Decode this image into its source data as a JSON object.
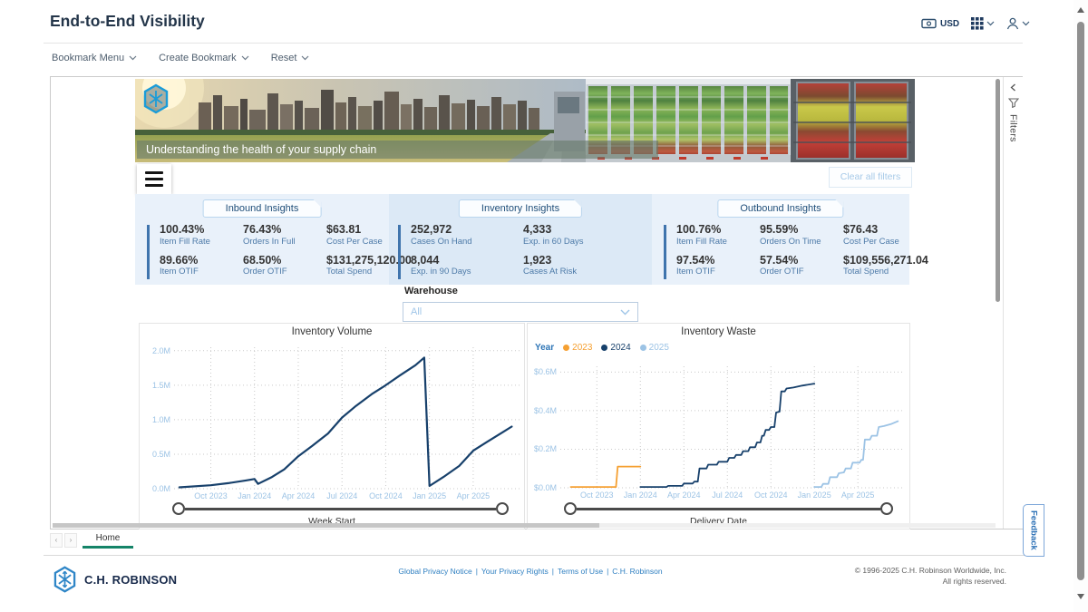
{
  "header": {
    "title": "End-to-End Visibility",
    "currency_label": "USD"
  },
  "toolbar": {
    "items": [
      "Bookmark Menu",
      "Create Bookmark",
      "Reset"
    ]
  },
  "banner": {
    "caption": "Understanding the health of your supply chain"
  },
  "actions": {
    "clear_all_filters": "Clear all filters"
  },
  "filters_pane": {
    "label": "Filters"
  },
  "insights": {
    "inbound": {
      "title": "Inbound Insights",
      "kpis": [
        {
          "value": "100.43%",
          "label": "Item Fill Rate"
        },
        {
          "value": "76.43%",
          "label": "Orders In Full"
        },
        {
          "value": "$63.81",
          "label": "Cost Per Case"
        },
        {
          "value": "89.66%",
          "label": "Item OTIF"
        },
        {
          "value": "68.50%",
          "label": "Order OTIF"
        },
        {
          "value": "$131,275,120.00",
          "label": "Total Spend"
        }
      ]
    },
    "inventory": {
      "title": "Inventory Insights",
      "kpis": [
        {
          "value": "252,972",
          "label": "Cases On Hand"
        },
        {
          "value": "4,333",
          "label": "Exp. in 60 Days"
        },
        {
          "value": "8,044",
          "label": "Exp. in 90 Days"
        },
        {
          "value": "1,923",
          "label": "Cases At Risk"
        }
      ]
    },
    "outbound": {
      "title": "Outbound Insights",
      "kpis": [
        {
          "value": "100.76%",
          "label": "Item Fill Rate"
        },
        {
          "value": "95.59%",
          "label": "Orders On Time"
        },
        {
          "value": "$76.43",
          "label": "Cost Per Case"
        },
        {
          "value": "97.54%",
          "label": "Item OTIF"
        },
        {
          "value": "57.54%",
          "label": "Order OTIF"
        },
        {
          "value": "$109,556,271.04",
          "label": "Total Spend"
        }
      ]
    }
  },
  "warehouse": {
    "label": "Warehouse",
    "value": "All"
  },
  "chart_data": [
    {
      "type": "line",
      "title": "Inventory Volume",
      "xlabel": "Week Start",
      "ylabel": "",
      "grid": true,
      "range_slider": true,
      "xlim": [
        2023.54,
        2025.52
      ],
      "ylim": [
        0,
        2.05
      ],
      "x_ticks": [
        {
          "label": "Oct 2023",
          "v": 2023.75
        },
        {
          "label": "Jan 2024",
          "v": 2024.0
        },
        {
          "label": "Apr 2024",
          "v": 2024.25
        },
        {
          "label": "Jul 2024",
          "v": 2024.5
        },
        {
          "label": "Oct 2024",
          "v": 2024.75
        },
        {
          "label": "Jan 2025",
          "v": 2025.0
        },
        {
          "label": "Apr 2025",
          "v": 2025.25
        }
      ],
      "y_ticks": [
        {
          "label": "2.0M",
          "v": 2.0
        },
        {
          "label": "1.5M",
          "v": 1.5
        },
        {
          "label": "1.0M",
          "v": 1.0
        },
        {
          "label": "0.5M",
          "v": 0.5
        },
        {
          "label": "0.0M",
          "v": 0.0
        }
      ],
      "series": [
        {
          "name": "Inventory Volume",
          "color": "#17406b",
          "width": 2.2,
          "points": [
            [
              2023.57,
              0.02
            ],
            [
              2023.75,
              0.05
            ],
            [
              2023.85,
              0.08
            ],
            [
              2023.95,
              0.12
            ],
            [
              2024.0,
              0.14
            ],
            [
              2024.02,
              0.07
            ],
            [
              2024.1,
              0.17
            ],
            [
              2024.17,
              0.28
            ],
            [
              2024.25,
              0.47
            ],
            [
              2024.33,
              0.62
            ],
            [
              2024.42,
              0.8
            ],
            [
              2024.5,
              1.03
            ],
            [
              2024.58,
              1.2
            ],
            [
              2024.67,
              1.37
            ],
            [
              2024.75,
              1.5
            ],
            [
              2024.83,
              1.64
            ],
            [
              2024.92,
              1.79
            ],
            [
              2024.97,
              1.9
            ],
            [
              2025.0,
              0.04
            ],
            [
              2025.08,
              0.17
            ],
            [
              2025.17,
              0.33
            ],
            [
              2025.25,
              0.55
            ],
            [
              2025.33,
              0.68
            ],
            [
              2025.42,
              0.82
            ],
            [
              2025.47,
              0.9
            ]
          ]
        }
      ]
    },
    {
      "type": "line",
      "title": "Inventory Waste",
      "xlabel": "Delivery Date",
      "ylabel": "",
      "legend_title": "Year",
      "legend_position": "top-left",
      "grid": true,
      "range_slider": true,
      "xlim": [
        2023.54,
        2025.52
      ],
      "ylim": [
        0,
        0.63
      ],
      "x_ticks": [
        {
          "label": "Oct 2023",
          "v": 2023.75
        },
        {
          "label": "Jan 2024",
          "v": 2024.0
        },
        {
          "label": "Apr 2024",
          "v": 2024.25
        },
        {
          "label": "Jul 2024",
          "v": 2024.5
        },
        {
          "label": "Oct 2024",
          "v": 2024.75
        },
        {
          "label": "Jan 2025",
          "v": 2025.0
        },
        {
          "label": "Apr 2025",
          "v": 2025.25
        }
      ],
      "y_ticks": [
        {
          "label": "$0.6M",
          "v": 0.6
        },
        {
          "label": "$0.4M",
          "v": 0.4
        },
        {
          "label": "$0.2M",
          "v": 0.2
        },
        {
          "label": "$0.0M",
          "v": 0.0
        }
      ],
      "series": [
        {
          "name": "2023",
          "color": "#f5a032",
          "width": 1.8,
          "points": [
            [
              2023.6,
              0.004
            ],
            [
              2023.86,
              0.004
            ],
            [
              2023.87,
              0.11
            ],
            [
              2024.0,
              0.11
            ]
          ]
        },
        {
          "name": "2024",
          "color": "#17406b",
          "width": 1.8,
          "points": [
            [
              2024.0,
              0.004
            ],
            [
              2024.15,
              0.004
            ],
            [
              2024.16,
              0.01
            ],
            [
              2024.24,
              0.01
            ],
            [
              2024.25,
              0.022
            ],
            [
              2024.3,
              0.022
            ],
            [
              2024.31,
              0.032
            ],
            [
              2024.33,
              0.032
            ],
            [
              2024.34,
              0.1
            ],
            [
              2024.38,
              0.1
            ],
            [
              2024.39,
              0.12
            ],
            [
              2024.44,
              0.12
            ],
            [
              2024.45,
              0.135
            ],
            [
              2024.5,
              0.135
            ],
            [
              2024.51,
              0.155
            ],
            [
              2024.54,
              0.155
            ],
            [
              2024.55,
              0.17
            ],
            [
              2024.58,
              0.17
            ],
            [
              2024.59,
              0.19
            ],
            [
              2024.62,
              0.19
            ],
            [
              2024.63,
              0.21
            ],
            [
              2024.66,
              0.21
            ],
            [
              2024.67,
              0.235
            ],
            [
              2024.69,
              0.235
            ],
            [
              2024.7,
              0.27
            ],
            [
              2024.71,
              0.27
            ],
            [
              2024.72,
              0.3
            ],
            [
              2024.74,
              0.3
            ],
            [
              2024.75,
              0.315
            ],
            [
              2024.77,
              0.315
            ],
            [
              2024.78,
              0.39
            ],
            [
              2024.8,
              0.395
            ],
            [
              2024.81,
              0.5
            ],
            [
              2024.83,
              0.5
            ],
            [
              2024.84,
              0.515
            ],
            [
              2024.88,
              0.52
            ],
            [
              2024.93,
              0.53
            ],
            [
              2025.0,
              0.54
            ]
          ]
        },
        {
          "name": "2025",
          "color": "#9cc3e5",
          "width": 1.8,
          "points": [
            [
              2025.0,
              0.004
            ],
            [
              2025.04,
              0.004
            ],
            [
              2025.05,
              0.02
            ],
            [
              2025.08,
              0.02
            ],
            [
              2025.09,
              0.055
            ],
            [
              2025.13,
              0.055
            ],
            [
              2025.14,
              0.075
            ],
            [
              2025.17,
              0.08
            ],
            [
              2025.18,
              0.1
            ],
            [
              2025.21,
              0.1
            ],
            [
              2025.22,
              0.13
            ],
            [
              2025.26,
              0.13
            ],
            [
              2025.27,
              0.145
            ],
            [
              2025.28,
              0.145
            ],
            [
              2025.29,
              0.25
            ],
            [
              2025.32,
              0.25
            ],
            [
              2025.33,
              0.27
            ],
            [
              2025.36,
              0.27
            ],
            [
              2025.37,
              0.315
            ],
            [
              2025.4,
              0.32
            ],
            [
              2025.44,
              0.33
            ],
            [
              2025.48,
              0.345
            ]
          ]
        }
      ]
    }
  ],
  "pages": {
    "active_tab": "Home"
  },
  "feedback_label": "Feedback",
  "footer": {
    "brand": "C.H. ROBINSON",
    "links": [
      "Global Privacy Notice",
      "Your Privacy Rights",
      "Terms of Use",
      "C.H. Robinson"
    ],
    "separator": "|",
    "copyright_line1": "© 1996-2025 C.H. Robinson Worldwide, Inc.",
    "copyright_line2": "All rights reserved."
  },
  "colors": {
    "accent_blue": "#2e75b6",
    "line_navy": "#17406b",
    "line_orange": "#f5a032",
    "line_lightblue": "#9cc3e5",
    "tab_underline": "#158468"
  }
}
